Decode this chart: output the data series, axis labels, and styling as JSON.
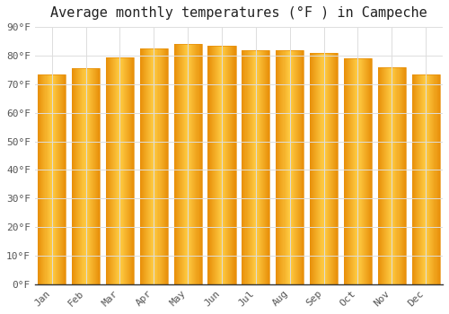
{
  "title": "Average monthly temperatures (°F ) in Campeche",
  "months": [
    "Jan",
    "Feb",
    "Mar",
    "Apr",
    "May",
    "Jun",
    "Jul",
    "Aug",
    "Sep",
    "Oct",
    "Nov",
    "Dec"
  ],
  "values": [
    73.5,
    75.5,
    79.5,
    82.5,
    84.0,
    83.5,
    82.0,
    82.0,
    81.0,
    79.0,
    76.0,
    73.5
  ],
  "bar_color_left": "#E8900A",
  "bar_color_center": "#FFCC44",
  "bar_color_right": "#E8900A",
  "background_color": "#FFFFFF",
  "grid_color": "#DDDDDD",
  "axis_color": "#555555",
  "ylim": [
    0,
    90
  ],
  "yticks": [
    0,
    10,
    20,
    30,
    40,
    50,
    60,
    70,
    80,
    90
  ],
  "title_fontsize": 11,
  "tick_fontsize": 8,
  "font_family": "monospace"
}
